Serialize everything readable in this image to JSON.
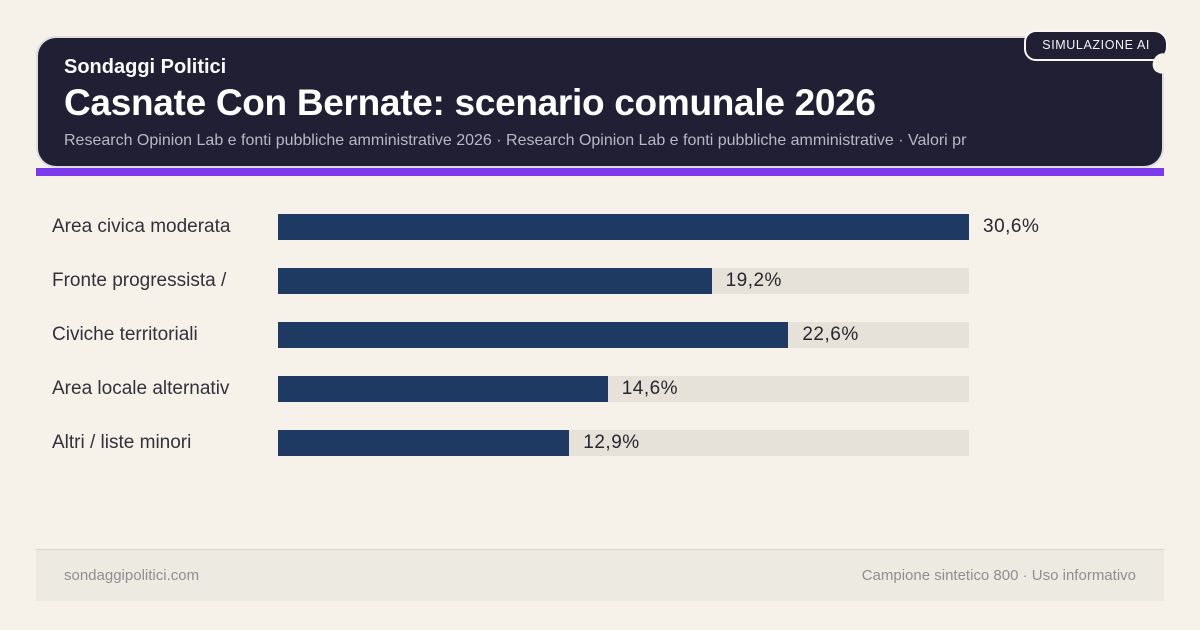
{
  "badge": {
    "label": "SIMULAZIONE AI"
  },
  "header": {
    "kicker": "Sondaggi Politici",
    "title": "Casnate Con Bernate: scenario comunale 2026",
    "subtitle": "Research Opinion Lab e fonti pubbliche amministrative 2026 · Research Opinion Lab e fonti pubbliche amministrative · Valori pr"
  },
  "chart_data": {
    "type": "bar",
    "orientation": "horizontal",
    "title": "Casnate Con Bernate: scenario comunale 2026",
    "categories": [
      "Area civica moderata",
      "Fronte progressista /",
      "Civiche territoriali",
      "Area locale alternativ",
      "Altri / liste minori"
    ],
    "values": [
      30.6,
      19.2,
      22.6,
      14.6,
      12.9
    ],
    "value_labels": [
      "30,6%",
      "19,2%",
      "22,6%",
      "14,6%",
      "12,9%"
    ],
    "xlim": [
      0,
      30.6
    ],
    "grid": false,
    "legend": false,
    "bar_color": "#1e3a63",
    "track_color": "#e6e1d9"
  },
  "footer": {
    "left": "sondaggipolitici.com",
    "right": "Campione sintetico 800 · Uso informativo"
  },
  "colors": {
    "background": "#f6f1e9",
    "header_bg": "#201f33",
    "accent": "#7c3aed",
    "bar_fill": "#1e3a63",
    "bar_track": "#e6e1d9",
    "label_text": "#32323c",
    "subtitle_text": "#b7b9c6",
    "footer_bg": "#edeae2",
    "footer_text": "#8f8e92"
  }
}
